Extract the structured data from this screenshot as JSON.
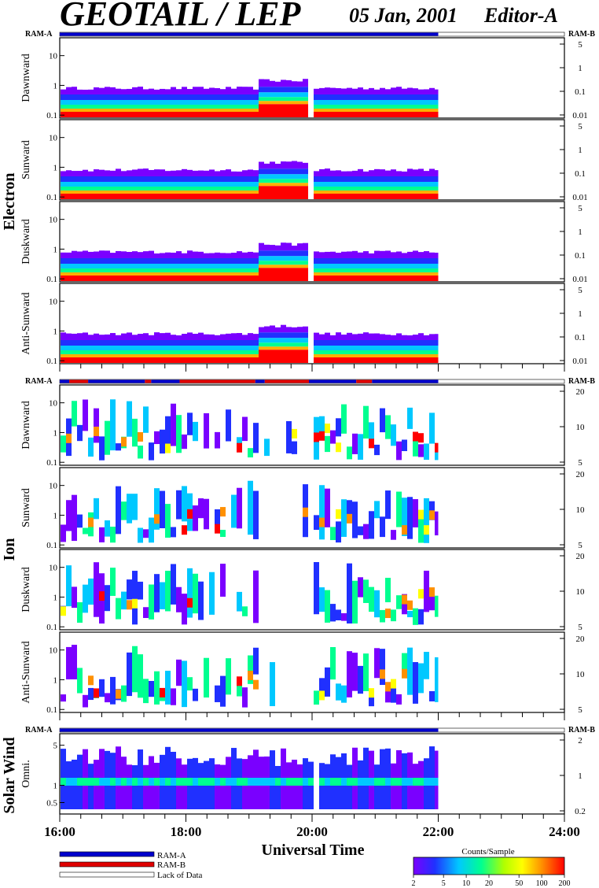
{
  "header": {
    "title": "GEOTAIL / LEP",
    "date": "05 Jan, 2001",
    "editor": "Editor-A"
  },
  "colors": {
    "ram_a": "#0000cc",
    "ram_b": "#e00000",
    "scale": [
      "#7a00ff",
      "#2030ff",
      "#00c8ff",
      "#00ff90",
      "#b0ff00",
      "#ffff00",
      "#ff9000",
      "#ff0000"
    ]
  },
  "chart_data": {
    "type": "heatmap",
    "xlabel": "Universal Time",
    "x_ticks": [
      "16:00",
      "18:00",
      "20:00",
      "22:00",
      "24:00"
    ],
    "x_range_hours": [
      16,
      24
    ],
    "data_end_hours": 22.0,
    "groups": [
      {
        "name": "Electron",
        "bar_label_left": "RAM-A",
        "bar_label_right": "RAM-B",
        "panels": [
          {
            "label": "Dawnward",
            "left_ticks": [
              "10",
              "1",
              "0.1"
            ],
            "right_ticks": [
              "5",
              "1",
              "0.1",
              "0.01"
            ]
          },
          {
            "label": "Sunward",
            "left_ticks": [
              "10",
              "1",
              "0.1"
            ],
            "right_ticks": [
              "5",
              "1",
              "0.1",
              "0.01"
            ]
          },
          {
            "label": "Duskward",
            "left_ticks": [
              "10",
              "1",
              "0.1"
            ],
            "right_ticks": [
              "5",
              "1",
              "0.1",
              "0.01"
            ]
          },
          {
            "label": "Anti-Sunward",
            "left_ticks": [
              "10",
              "1",
              "0.1"
            ],
            "right_ticks": [
              "5",
              "1",
              "0.1",
              "0.01"
            ]
          }
        ]
      },
      {
        "name": "Ion",
        "bar_label_left": "RAM-A",
        "bar_label_right": "RAM-B",
        "panels": [
          {
            "label": "Dawnward",
            "left_ticks": [
              "10",
              "1",
              "0.1"
            ],
            "right_ticks": [
              "20",
              "10",
              "5"
            ]
          },
          {
            "label": "Sunward",
            "left_ticks": [
              "10",
              "1",
              "0.1"
            ],
            "right_ticks": [
              "20",
              "10",
              "5"
            ]
          },
          {
            "label": "Duskward",
            "left_ticks": [
              "10",
              "1",
              "0.1"
            ],
            "right_ticks": [
              "20",
              "10",
              "5"
            ]
          },
          {
            "label": "Anti-Sunward",
            "left_ticks": [
              "10",
              "1",
              "0.1"
            ],
            "right_ticks": [
              "20",
              "10",
              "5"
            ]
          }
        ]
      },
      {
        "name": "Solar Wind",
        "bar_label_left": "RAM-A",
        "bar_label_right": "RAM-B",
        "panels": [
          {
            "label": "Omni.",
            "left_ticks": [
              "5",
              "1",
              "0.5"
            ],
            "right_ticks": [
              "2",
              "1",
              "0.2"
            ]
          }
        ]
      }
    ],
    "ram_segments_hours": [
      {
        "mode": "A",
        "start": 16.0,
        "end": 22.0
      }
    ],
    "ion_ram_segments_hours": [
      {
        "mode": "A",
        "start": 16.0,
        "end": 16.15
      },
      {
        "mode": "B",
        "start": 16.15,
        "end": 16.45
      },
      {
        "mode": "A",
        "start": 16.45,
        "end": 17.35
      },
      {
        "mode": "B",
        "start": 17.35,
        "end": 17.45
      },
      {
        "mode": "A",
        "start": 17.45,
        "end": 17.9
      },
      {
        "mode": "B",
        "start": 17.9,
        "end": 19.1
      },
      {
        "mode": "A",
        "start": 19.1,
        "end": 19.25
      },
      {
        "mode": "B",
        "start": 19.25,
        "end": 19.95
      },
      {
        "mode": "A",
        "start": 19.95,
        "end": 20.7
      },
      {
        "mode": "B",
        "start": 20.7,
        "end": 20.95
      },
      {
        "mode": "A",
        "start": 20.95,
        "end": 22.0
      }
    ],
    "colorbar": {
      "title": "Counts/Sample",
      "ticks": [
        "2",
        "5",
        "10",
        "20",
        "50",
        "100",
        "200"
      ]
    },
    "legend": [
      {
        "label": "RAM-A",
        "color": "#0000cc"
      },
      {
        "label": "RAM-B",
        "color": "#e00000"
      },
      {
        "label": "Lack of Data",
        "color": "#ffffff"
      }
    ]
  }
}
